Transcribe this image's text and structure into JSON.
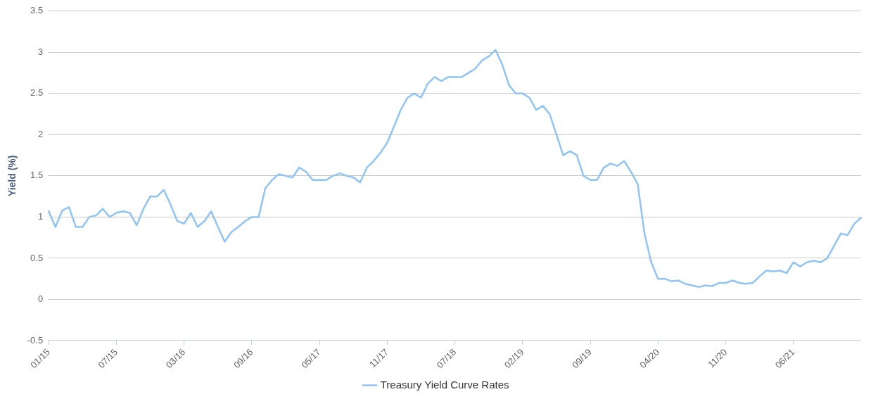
{
  "chart_data": {
    "type": "line",
    "ylabel": "Yield (%)",
    "categories": [
      "01/15",
      null,
      null,
      null,
      null,
      null,
      null,
      null,
      null,
      null,
      "07/15",
      null,
      null,
      null,
      null,
      null,
      null,
      null,
      null,
      null,
      "03/16",
      null,
      null,
      null,
      null,
      null,
      null,
      null,
      null,
      null,
      "09/16",
      null,
      null,
      null,
      null,
      null,
      null,
      null,
      null,
      null,
      "05/17",
      null,
      null,
      null,
      null,
      null,
      null,
      null,
      null,
      null,
      "11/17",
      null,
      null,
      null,
      null,
      null,
      null,
      null,
      null,
      null,
      "07/18",
      null,
      null,
      null,
      null,
      null,
      null,
      null,
      null,
      null,
      "02/19",
      null,
      null,
      null,
      null,
      null,
      null,
      null,
      null,
      null,
      "09/19",
      null,
      null,
      null,
      null,
      null,
      null,
      null,
      null,
      null,
      "04/20",
      null,
      null,
      null,
      null,
      null,
      null,
      null,
      null,
      null,
      "11/20",
      null,
      null,
      null,
      null,
      null,
      null,
      null,
      null,
      null,
      "06/21",
      null,
      null,
      null,
      null,
      null,
      null,
      null,
      null,
      null,
      null
    ],
    "series": [
      {
        "name": "Treasury Yield Curve Rates",
        "color": "#90c4f5",
        "values": [
          1.07,
          0.88,
          1.08,
          1.12,
          0.88,
          0.88,
          1.0,
          1.02,
          1.1,
          1.0,
          1.05,
          1.07,
          1.05,
          0.9,
          1.1,
          1.25,
          1.25,
          1.33,
          1.15,
          0.95,
          0.92,
          1.05,
          0.88,
          0.95,
          1.07,
          0.88,
          0.7,
          0.82,
          0.88,
          0.95,
          1.0,
          1.0,
          1.35,
          1.45,
          1.52,
          1.5,
          1.48,
          1.6,
          1.55,
          1.45,
          1.45,
          1.45,
          1.5,
          1.53,
          1.5,
          1.48,
          1.42,
          1.6,
          1.68,
          1.78,
          1.9,
          2.1,
          2.3,
          2.45,
          2.5,
          2.45,
          2.62,
          2.7,
          2.65,
          2.7,
          2.7,
          2.7,
          2.75,
          2.8,
          2.9,
          2.95,
          3.03,
          2.85,
          2.6,
          2.5,
          2.5,
          2.45,
          2.3,
          2.35,
          2.25,
          2.0,
          1.75,
          1.8,
          1.75,
          1.5,
          1.45,
          1.45,
          1.6,
          1.65,
          1.62,
          1.68,
          1.55,
          1.4,
          0.8,
          0.45,
          0.25,
          0.25,
          0.22,
          0.23,
          0.19,
          0.17,
          0.15,
          0.17,
          0.16,
          0.2,
          0.2,
          0.23,
          0.2,
          0.19,
          0.2,
          0.28,
          0.35,
          0.34,
          0.35,
          0.32,
          0.45,
          0.4,
          0.45,
          0.47,
          0.45,
          0.5,
          0.65,
          0.8,
          0.78,
          0.92,
          0.99
        ]
      }
    ],
    "ylim": [
      -0.5,
      3.5
    ],
    "yticks": [
      -0.5,
      0,
      0.5,
      1,
      1.5,
      2,
      2.5,
      3,
      3.5
    ],
    "grid": "y",
    "legend": "bottom",
    "marker": "none",
    "line_style": "solid"
  }
}
